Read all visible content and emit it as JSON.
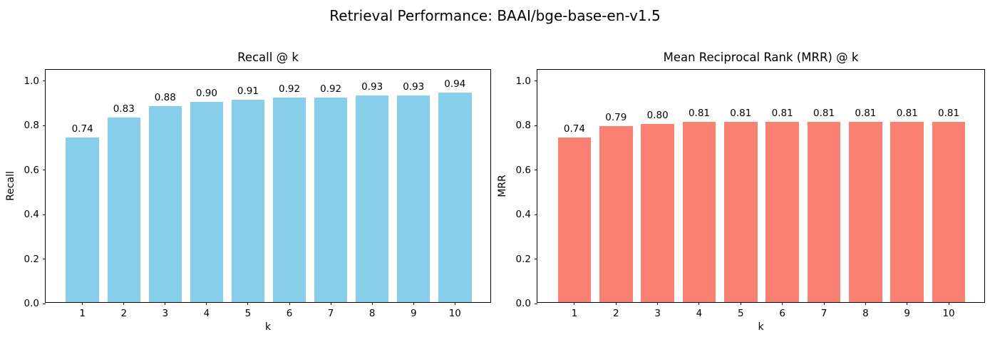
{
  "figure": {
    "suptitle": "Retrieval Performance: BAAI/bge-base-en-v1.5",
    "background": "#ffffff",
    "text_color": "#000000",
    "spine_color": "#000000"
  },
  "chart_data": [
    {
      "type": "bar",
      "title": "Recall @ k",
      "xlabel": "k",
      "ylabel": "Recall",
      "categories": [
        1,
        2,
        3,
        4,
        5,
        6,
        7,
        8,
        9,
        10
      ],
      "values": [
        0.74,
        0.83,
        0.88,
        0.9,
        0.91,
        0.92,
        0.92,
        0.93,
        0.93,
        0.94
      ],
      "bar_labels": [
        "0.74",
        "0.83",
        "0.88",
        "0.90",
        "0.91",
        "0.92",
        "0.92",
        "0.93",
        "0.93",
        "0.94"
      ],
      "bar_color": "#87CEEB",
      "ylim": [
        0,
        1.05
      ],
      "yticks": [
        0.0,
        0.2,
        0.4,
        0.6,
        0.8,
        1.0
      ],
      "ytick_labels": [
        "0.0",
        "0.2",
        "0.4",
        "0.6",
        "0.8",
        "1.0"
      ],
      "grid": false,
      "legend_position": "none"
    },
    {
      "type": "bar",
      "title": "Mean Reciprocal Rank (MRR) @ k",
      "xlabel": "k",
      "ylabel": "MRR",
      "categories": [
        1,
        2,
        3,
        4,
        5,
        6,
        7,
        8,
        9,
        10
      ],
      "values": [
        0.74,
        0.79,
        0.8,
        0.81,
        0.81,
        0.81,
        0.81,
        0.81,
        0.81,
        0.81
      ],
      "bar_labels": [
        "0.74",
        "0.79",
        "0.80",
        "0.81",
        "0.81",
        "0.81",
        "0.81",
        "0.81",
        "0.81",
        "0.81"
      ],
      "bar_color": "#FA8072",
      "ylim": [
        0,
        1.05
      ],
      "yticks": [
        0.0,
        0.2,
        0.4,
        0.6,
        0.8,
        1.0
      ],
      "ytick_labels": [
        "0.0",
        "0.2",
        "0.4",
        "0.6",
        "0.8",
        "1.0"
      ],
      "grid": false,
      "legend_position": "none"
    }
  ]
}
